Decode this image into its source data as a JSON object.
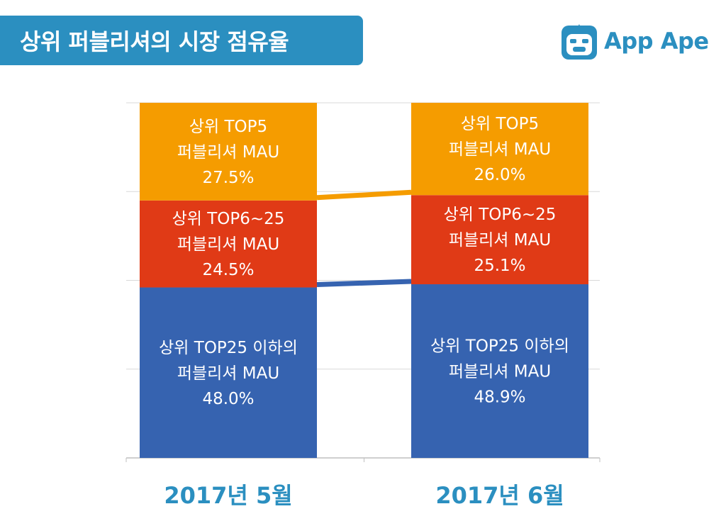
{
  "header": {
    "title": "상위 퍼블리셔의 시장 점유율",
    "logo_text": "App Ape"
  },
  "colors": {
    "banner": "#2b8fc0",
    "top5": "#f59c00",
    "top6_25": "#e03a16",
    "below25": "#3663b0"
  },
  "chart_data": {
    "type": "bar",
    "stacked": true,
    "unit": "%",
    "ylim": [
      0,
      100
    ],
    "grid": true,
    "categories": [
      "2017년 5월",
      "2017년 6월"
    ],
    "series": [
      {
        "key": "below25",
        "name_lines": [
          "상위 TOP25 이하의",
          "퍼블리셔 MAU"
        ],
        "values": [
          48.0,
          48.9
        ],
        "labels": [
          "48.0%",
          "48.9%"
        ]
      },
      {
        "key": "top6_25",
        "name_lines": [
          "상위 TOP6~25",
          "퍼블리셔 MAU"
        ],
        "values": [
          24.5,
          25.1
        ],
        "labels": [
          "24.5%",
          "25.1%"
        ]
      },
      {
        "key": "top5",
        "name_lines": [
          "상위 TOP5",
          "퍼블리셔 MAU"
        ],
        "values": [
          27.5,
          26.0
        ],
        "labels": [
          "27.5%",
          "26.0%"
        ]
      }
    ]
  }
}
